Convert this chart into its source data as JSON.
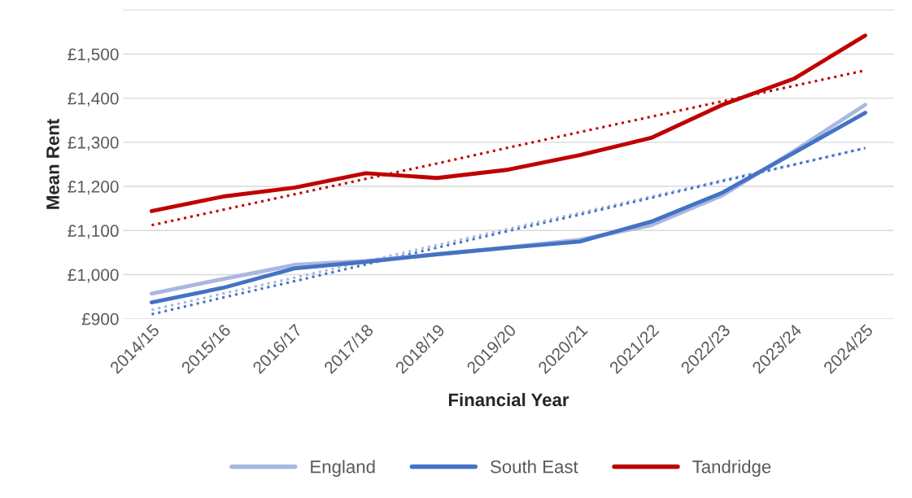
{
  "chart_data": {
    "type": "line",
    "xlabel": "Financial Year",
    "ylabel": "Mean Rent",
    "categories": [
      "2014/15",
      "2015/16",
      "2016/17",
      "2017/18",
      "2018/19",
      "2019/20",
      "2020/21",
      "2021/22",
      "2022/23",
      "2023/24",
      "2024/25"
    ],
    "series": [
      {
        "name": "England",
        "color": "#a9b8e0",
        "line_style": "solid",
        "values": [
          957,
          990,
          1022,
          1031,
          1046,
          1062,
          1079,
          1112,
          1180,
          1280,
          1385
        ]
      },
      {
        "name": "South East",
        "color": "#4472c4",
        "line_style": "solid",
        "values": [
          937,
          970,
          1014,
          1029,
          1046,
          1061,
          1075,
          1120,
          1186,
          1276,
          1367
        ]
      },
      {
        "name": "Tandridge",
        "color": "#c00000",
        "line_style": "solid",
        "values": [
          1144,
          1177,
          1197,
          1230,
          1219,
          1238,
          1271,
          1310,
          1385,
          1444,
          1542
        ]
      },
      {
        "color": "#a9b8e0",
        "line_style": "dotted",
        "values": [
          920,
          957,
          993,
          1030,
          1067,
          1104,
          1140,
          1177,
          1214,
          1250,
          1287
        ]
      },
      {
        "color": "#4472c4",
        "line_style": "dotted",
        "values": [
          910,
          948,
          985,
          1023,
          1061,
          1099,
          1136,
          1174,
          1212,
          1249,
          1287
        ]
      },
      {
        "color": "#c00000",
        "line_style": "dotted",
        "values": [
          1112,
          1147,
          1182,
          1217,
          1252,
          1288,
          1323,
          1358,
          1393,
          1428,
          1463
        ]
      }
    ],
    "ylim": [
      900,
      1600
    ],
    "yticks": [
      {
        "value": 900,
        "label": "£900"
      },
      {
        "value": 1000,
        "label": "£1,000"
      },
      {
        "value": 1100,
        "label": "£1,100"
      },
      {
        "value": 1200,
        "label": "£1,200"
      },
      {
        "value": 1300,
        "label": "£1,300"
      },
      {
        "value": 1400,
        "label": "£1,400"
      },
      {
        "value": 1500,
        "label": "£1,500"
      }
    ],
    "grid": "y",
    "legend": "bottom",
    "marker": "none"
  }
}
